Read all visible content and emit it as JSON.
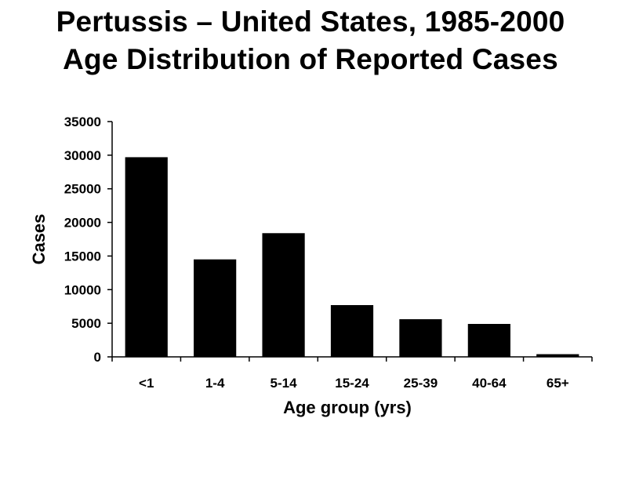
{
  "chart_data": {
    "type": "bar",
    "title": "Pertussis – United States, 1985-2000",
    "subtitle": "Age Distribution of Reported Cases",
    "xlabel": "Age group (yrs)",
    "ylabel": "Cases",
    "categories": [
      "<1",
      "1-4",
      "5-14",
      "15-24",
      "25-39",
      "40-64",
      "65+"
    ],
    "values": [
      29700,
      14500,
      18400,
      7700,
      5600,
      4900,
      400
    ],
    "ylim": [
      0,
      35000
    ],
    "yticks": [
      "0",
      "5000",
      "10000",
      "15000",
      "20000",
      "25000",
      "30000",
      "35000"
    ],
    "grid": false,
    "bar_color": "#000000"
  }
}
